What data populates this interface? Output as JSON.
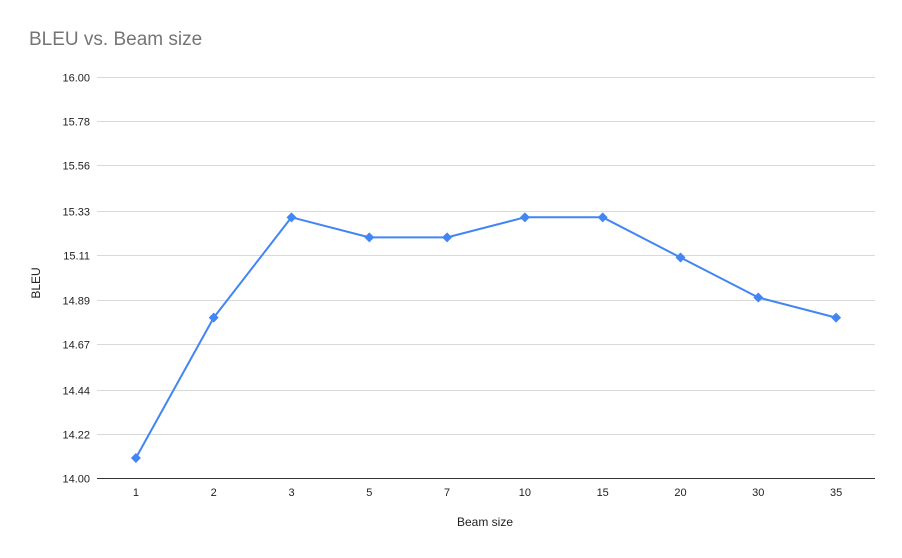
{
  "chart_data": {
    "type": "line",
    "title": "BLEU vs. Beam size",
    "xlabel": "Beam size",
    "ylabel": "BLEU",
    "categories": [
      "1",
      "2",
      "3",
      "5",
      "7",
      "10",
      "15",
      "20",
      "30",
      "35"
    ],
    "series": [
      {
        "values": [
          14.1,
          14.8,
          15.3,
          15.2,
          15.2,
          15.3,
          15.3,
          15.1,
          14.9,
          14.8
        ],
        "color": "#4285f4",
        "marker": "diamond"
      }
    ],
    "yticks": [
      "14.00",
      "14.22",
      "14.44",
      "14.67",
      "14.89",
      "15.11",
      "15.33",
      "15.56",
      "15.78",
      "16.00"
    ],
    "ylim": [
      14.0,
      16.0
    ],
    "grid": true,
    "legend": "none",
    "colors": {
      "title": "#757575",
      "gridline": "#d9d9d9",
      "axis_text": "#222222",
      "line": "#4285f4"
    }
  }
}
